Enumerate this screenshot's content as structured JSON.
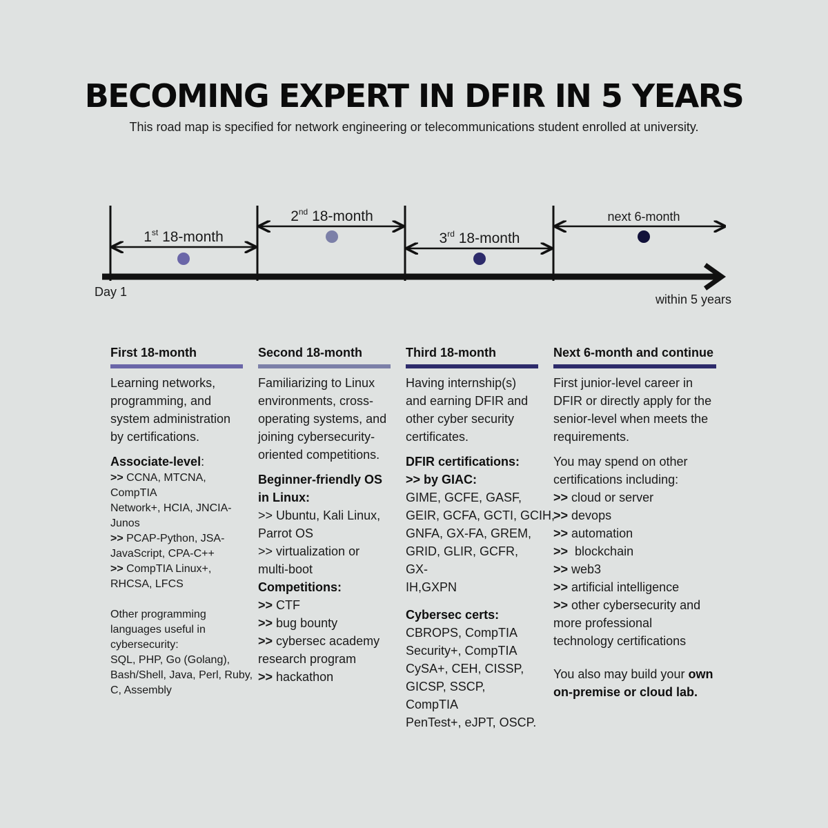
{
  "title": "BECOMING EXPERT IN DFIR IN 5 YEARS",
  "subtitle": "This road map is specified for network engineering or telecommunications student enrolled at university.",
  "timeline": {
    "start_label": "Day 1",
    "end_label": "within 5 years",
    "segments": [
      {
        "ordinal_num": "1",
        "ordinal_sup": "st",
        "label": "18-month",
        "color": "#6a66a8"
      },
      {
        "ordinal_num": "2",
        "ordinal_sup": "nd",
        "label": "18-month",
        "color": "#7c80a8"
      },
      {
        "ordinal_num": "3",
        "ordinal_sup": "rd",
        "label": "18-month",
        "color": "#2d2b6b"
      },
      {
        "ordinal_num": "",
        "ordinal_sup": "",
        "label": "next 6-month",
        "color": "#11113a"
      }
    ]
  },
  "columns": [
    {
      "heading": "First 18-month",
      "bar_color": "#6a66a8",
      "intro": [
        "Learning networks,",
        "programming, and",
        "system administration",
        "by certifications."
      ],
      "assoc_label": "Associate-level",
      "assoc_colon": ":",
      "assoc_items": [
        {
          "arrow": ">>",
          "text": " CCNA, MTCNA, CompTIA",
          "cont": [
            "Network+, HCIA, JNCIA-",
            "Junos"
          ]
        },
        {
          "arrow": ">>",
          "text": " PCAP-Python, JSA-",
          "cont": [
            "JavaScript, CPA-C++"
          ]
        },
        {
          "arrow": ">>",
          "text": " CompTIA Linux+,",
          "cont": [
            "RHCSA, LFCS"
          ]
        }
      ],
      "other_lines": [
        "Other programming",
        "languages useful in",
        "cybersecurity:",
        "SQL, PHP, Go (Golang),",
        "Bash/Shell, Java, Perl, Ruby,",
        "C, Assembly"
      ]
    },
    {
      "heading": "Second  18-month",
      "bar_color": "#7c80a8",
      "intro": [
        "Familiarizing to Linux",
        "environments, cross-",
        "operating systems, and",
        "joining cybersecurity-",
        "oriented competitions."
      ],
      "os_label_1": "Beginner-friendly OS",
      "os_label_2": "in Linux:",
      "os_lines": [
        ">> Ubuntu, Kali Linux,",
        "Parrot OS",
        ">> virtualization or",
        "multi-boot"
      ],
      "comp_label": "Competitions:",
      "comp_items": [
        {
          "arrow": ">>",
          "text": " CTF",
          "cont": []
        },
        {
          "arrow": ">>",
          "text": " bug bounty",
          "cont": []
        },
        {
          "arrow": ">>",
          "text": " cybersec academy",
          "cont": [
            "research program"
          ]
        },
        {
          "arrow": ">>",
          "text": " hackathon",
          "cont": []
        }
      ]
    },
    {
      "heading": "Third  18-month",
      "bar_color": "#2d2b6b",
      "intro": [
        "Having internship(s)",
        "and earning DFIR and",
        "other cyber security",
        "certificates."
      ],
      "dfir_label": "DFIR certifications:",
      "giac_label": ">> by GIAC:",
      "giac_lines": [
        "GIME, GCFE, GASF,",
        "GEIR, GCFA, GCTI, GCIH,",
        "GNFA, GX-FA, GREM,",
        "GRID, GLIR, GCFR, GX-",
        "IH,GXPN"
      ],
      "cyber_label": "Cybersec certs:",
      "cyber_lines": [
        "CBROPS, CompTIA",
        "Security+, CompTIA",
        "CySA+, CEH, CISSP,",
        "GICSP, SSCP, CompTIA",
        "PenTest+, eJPT, OSCP."
      ]
    },
    {
      "heading": "Next  6-month and continue",
      "bar_color": "#2d2b6b",
      "intro": [
        "First junior-level career in",
        "DFIR or directly apply for the",
        "senior-level when meets the",
        "requirements."
      ],
      "spend_lines": [
        "You may spend on other",
        "certifications including:"
      ],
      "spend_items": [
        {
          "arrow": ">>",
          "text": " cloud or server",
          "cont": []
        },
        {
          "arrow": ">>",
          "text": " devops",
          "cont": []
        },
        {
          "arrow": ">>",
          "text": " automation",
          "cont": []
        },
        {
          "arrow": ">>",
          "text": "  blockchain",
          "cont": []
        },
        {
          "arrow": ">>",
          "text": " web3",
          "cont": []
        },
        {
          "arrow": ">>",
          "text": " artificial intelligence",
          "cont": []
        },
        {
          "arrow": ">>",
          "text": " other cybersecurity and",
          "cont": [
            "more professional",
            "technology certifications"
          ]
        }
      ],
      "lab_text": "You also may build your ",
      "lab_bold_1": "own",
      "lab_bold_2": "on-premise or cloud lab."
    }
  ]
}
